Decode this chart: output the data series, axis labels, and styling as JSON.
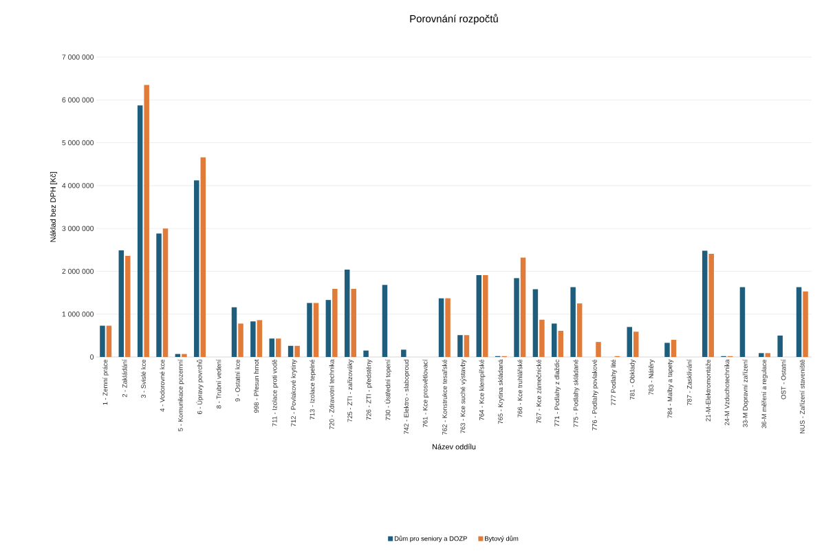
{
  "chart_data": {
    "type": "bar",
    "title": "Porovnání rozpočtů",
    "xlabel": "Název oddílu",
    "ylabel": "Náklad bez DPH [Kč]",
    "categories": [
      "1 - Zemní práce",
      "2 - Zakládání",
      "3 - Svislé kce",
      "4 - Vodorovné kce",
      "5 - Komunikace pozemní",
      "6 - Úpravy povrchů",
      "8 - Trubní vedení",
      "9 - Ostatní kce",
      "998 - Přesun hmot",
      "711 - Izolace proti vodě",
      "712 - Povlakové krytiny",
      "713 - Izolace tepelné",
      "720 - Zdravotní technika",
      "725 - ZTI - zařizováky",
      "726 - ZTI - předstěny",
      "730 - Ústřední topení",
      "742 - Elektro - slaboproud",
      "761 - Kce prosvětlovací",
      "762 - Konstrukce tesařské",
      "763 - Kce suché výstavby",
      "764 - Kce klempířské",
      "765 - Krytina skládaná",
      "766 - Kce truhlářské",
      "767 - Kce zámečnické",
      "771 - Podlahy z dlaždic",
      "775 - Podlahy skládané",
      "776 - Podlahy povlakové",
      "777  Podlahy lité",
      "781 - Obklady",
      "783 - Nátěry",
      "784 - Malby a tapety",
      "787 - Zasklívání",
      "21-M-Elektromontáže",
      "24-M Vzduchotechnika",
      "33-M Dopravní zařízení",
      "36-M měření a regulace",
      "OST - Ostatní",
      "NUS - Zařízení staveniště"
    ],
    "series": [
      {
        "name": "Dům pro seniory a DOZP",
        "color": "#1f5d7c",
        "values": [
          730000,
          2490000,
          5870000,
          2880000,
          70000,
          4120000,
          0,
          1160000,
          830000,
          430000,
          260000,
          1260000,
          1330000,
          2040000,
          150000,
          1680000,
          170000,
          0,
          1370000,
          510000,
          1910000,
          20000,
          1840000,
          1580000,
          780000,
          1630000,
          0,
          0,
          700000,
          0,
          330000,
          0,
          2480000,
          20000,
          1630000,
          90000,
          500000,
          1630000
        ]
      },
      {
        "name": "Bytový dům",
        "color": "#e07b3a",
        "values": [
          730000,
          2360000,
          6350000,
          3000000,
          70000,
          4660000,
          0,
          780000,
          860000,
          430000,
          260000,
          1260000,
          1590000,
          1590000,
          0,
          0,
          0,
          0,
          1370000,
          510000,
          1910000,
          20000,
          2320000,
          870000,
          610000,
          1250000,
          350000,
          20000,
          590000,
          0,
          400000,
          0,
          2410000,
          20000,
          0,
          90000,
          0,
          1530000
        ]
      }
    ],
    "ylim": [
      0,
      7000000
    ],
    "yticks": [
      0,
      {
        "value": 1000000,
        "label": "1 000 000"
      },
      {
        "value": 2000000,
        "label": "2 000 000"
      },
      {
        "value": 3000000,
        "label": "3 000 000"
      },
      {
        "value": 4000000,
        "label": "4 000 000"
      },
      {
        "value": 5000000,
        "label": "5 000 000"
      },
      {
        "value": 6000000,
        "label": "6 000 000"
      },
      {
        "value": 7000000,
        "label": "7 000 000"
      }
    ],
    "grid": "y",
    "legend": "bottom"
  }
}
